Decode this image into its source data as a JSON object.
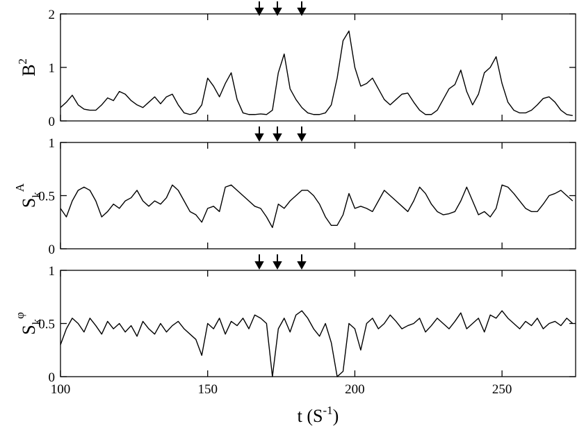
{
  "chart_data": [
    {
      "type": "line",
      "color": "#000000",
      "ylabel": {
        "text": "B",
        "sup": "2"
      },
      "xlim": [
        100,
        275
      ],
      "xticks": [
        100,
        150,
        200,
        250
      ],
      "ylim": [
        0,
        2
      ],
      "yticks": [
        0,
        1,
        2
      ],
      "x": [
        100,
        102,
        104,
        106,
        108,
        110,
        112,
        114,
        116,
        118,
        120,
        122,
        124,
        126,
        128,
        130,
        132,
        134,
        136,
        138,
        140,
        142,
        144,
        146,
        148,
        150,
        152,
        154,
        156,
        158,
        160,
        162,
        164,
        166,
        168,
        170,
        172,
        174,
        176,
        178,
        180,
        182,
        184,
        186,
        188,
        190,
        192,
        194,
        196,
        198,
        200,
        202,
        204,
        206,
        208,
        210,
        212,
        214,
        216,
        218,
        220,
        222,
        224,
        226,
        228,
        230,
        232,
        234,
        236,
        238,
        240,
        242,
        244,
        246,
        248,
        250,
        252,
        254,
        256,
        258,
        260,
        262,
        264,
        266,
        268,
        270,
        272,
        274
      ],
      "values": [
        0.25,
        0.35,
        0.48,
        0.3,
        0.22,
        0.2,
        0.2,
        0.3,
        0.43,
        0.38,
        0.55,
        0.5,
        0.38,
        0.3,
        0.25,
        0.35,
        0.45,
        0.32,
        0.45,
        0.5,
        0.3,
        0.15,
        0.12,
        0.15,
        0.3,
        0.8,
        0.65,
        0.45,
        0.7,
        0.9,
        0.4,
        0.15,
        0.12,
        0.12,
        0.13,
        0.12,
        0.2,
        0.9,
        1.25,
        0.6,
        0.4,
        0.25,
        0.15,
        0.12,
        0.12,
        0.15,
        0.3,
        0.8,
        1.5,
        1.68,
        1.0,
        0.65,
        0.7,
        0.8,
        0.6,
        0.4,
        0.3,
        0.4,
        0.5,
        0.52,
        0.35,
        0.2,
        0.12,
        0.12,
        0.2,
        0.4,
        0.6,
        0.68,
        0.95,
        0.55,
        0.3,
        0.5,
        0.9,
        1.0,
        1.2,
        0.7,
        0.35,
        0.2,
        0.15,
        0.15,
        0.2,
        0.3,
        0.42,
        0.45,
        0.35,
        0.2,
        0.12,
        0.1
      ]
    },
    {
      "type": "line",
      "color": "#000000",
      "ylabel": {
        "text": "S",
        "sub": "k",
        "sup": "A"
      },
      "xlim": [
        100,
        275
      ],
      "xticks": [
        100,
        150,
        200,
        250
      ],
      "ylim": [
        0,
        1
      ],
      "yticks": [
        0,
        0.5,
        1
      ],
      "x": [
        100,
        102,
        104,
        106,
        108,
        110,
        112,
        114,
        116,
        118,
        120,
        122,
        124,
        126,
        128,
        130,
        132,
        134,
        136,
        138,
        140,
        142,
        144,
        146,
        148,
        150,
        152,
        154,
        156,
        158,
        160,
        162,
        164,
        166,
        168,
        170,
        172,
        174,
        176,
        178,
        180,
        182,
        184,
        186,
        188,
        190,
        192,
        194,
        196,
        198,
        200,
        202,
        204,
        206,
        208,
        210,
        212,
        214,
        216,
        218,
        220,
        222,
        224,
        226,
        228,
        230,
        232,
        234,
        236,
        238,
        240,
        242,
        244,
        246,
        248,
        250,
        252,
        254,
        256,
        258,
        260,
        262,
        264,
        266,
        268,
        270,
        272,
        274
      ],
      "values": [
        0.38,
        0.3,
        0.45,
        0.55,
        0.58,
        0.55,
        0.45,
        0.3,
        0.35,
        0.42,
        0.38,
        0.45,
        0.48,
        0.55,
        0.45,
        0.4,
        0.45,
        0.42,
        0.48,
        0.6,
        0.55,
        0.45,
        0.35,
        0.32,
        0.25,
        0.38,
        0.4,
        0.35,
        0.58,
        0.6,
        0.55,
        0.5,
        0.45,
        0.4,
        0.38,
        0.3,
        0.2,
        0.42,
        0.38,
        0.45,
        0.5,
        0.55,
        0.55,
        0.5,
        0.42,
        0.3,
        0.22,
        0.22,
        0.32,
        0.52,
        0.38,
        0.4,
        0.38,
        0.35,
        0.45,
        0.55,
        0.5,
        0.45,
        0.4,
        0.35,
        0.45,
        0.58,
        0.52,
        0.42,
        0.35,
        0.32,
        0.33,
        0.35,
        0.45,
        0.58,
        0.45,
        0.32,
        0.35,
        0.3,
        0.38,
        0.6,
        0.58,
        0.52,
        0.45,
        0.38,
        0.35,
        0.35,
        0.42,
        0.5,
        0.52,
        0.55,
        0.5,
        0.45
      ]
    },
    {
      "type": "line",
      "color": "#000000",
      "ylabel": {
        "text": "S",
        "sub": "k",
        "sup": "φ"
      },
      "xlabel": [
        "t (S",
        "-1",
        ")"
      ],
      "xlim": [
        100,
        275
      ],
      "xticks": [
        100,
        150,
        200,
        250
      ],
      "ylim": [
        0,
        1
      ],
      "yticks": [
        0,
        0.5,
        1
      ],
      "x": [
        100,
        102,
        104,
        106,
        108,
        110,
        112,
        114,
        116,
        118,
        120,
        122,
        124,
        126,
        128,
        130,
        132,
        134,
        136,
        138,
        140,
        142,
        144,
        146,
        148,
        150,
        152,
        154,
        156,
        158,
        160,
        162,
        164,
        166,
        168,
        170,
        172,
        174,
        176,
        178,
        180,
        182,
        184,
        186,
        188,
        190,
        192,
        194,
        196,
        198,
        200,
        202,
        204,
        206,
        208,
        210,
        212,
        214,
        216,
        218,
        220,
        222,
        224,
        226,
        228,
        230,
        232,
        234,
        236,
        238,
        240,
        242,
        244,
        246,
        248,
        250,
        252,
        254,
        256,
        258,
        260,
        262,
        264,
        266,
        268,
        270,
        272,
        274
      ],
      "values": [
        0.3,
        0.45,
        0.55,
        0.5,
        0.42,
        0.55,
        0.48,
        0.4,
        0.52,
        0.45,
        0.5,
        0.42,
        0.48,
        0.38,
        0.52,
        0.45,
        0.4,
        0.5,
        0.42,
        0.48,
        0.52,
        0.45,
        0.4,
        0.35,
        0.2,
        0.5,
        0.45,
        0.55,
        0.4,
        0.52,
        0.48,
        0.55,
        0.45,
        0.58,
        0.55,
        0.5,
        0.0,
        0.45,
        0.55,
        0.42,
        0.58,
        0.62,
        0.55,
        0.45,
        0.38,
        0.5,
        0.32,
        0.0,
        0.05,
        0.5,
        0.45,
        0.25,
        0.5,
        0.55,
        0.45,
        0.5,
        0.58,
        0.52,
        0.45,
        0.48,
        0.5,
        0.55,
        0.42,
        0.48,
        0.55,
        0.5,
        0.45,
        0.52,
        0.6,
        0.45,
        0.5,
        0.55,
        0.42,
        0.58,
        0.55,
        0.62,
        0.55,
        0.5,
        0.45,
        0.52,
        0.48,
        0.55,
        0.45,
        0.5,
        0.52,
        0.48,
        0.55,
        0.5
      ]
    }
  ]
}
